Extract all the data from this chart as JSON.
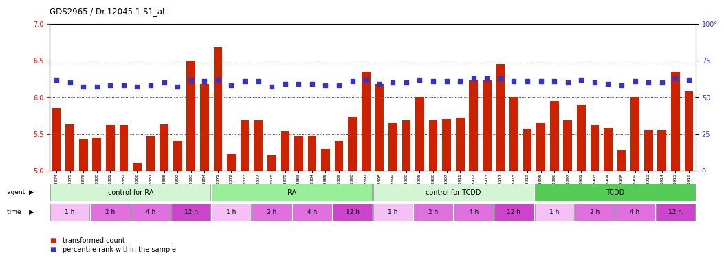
{
  "title": "GDS2965 / Dr.12045.1.S1_at",
  "samples": [
    "GSM228874",
    "GSM228875",
    "GSM228876",
    "GSM228880",
    "GSM228881",
    "GSM228882",
    "GSM228886",
    "GSM228887",
    "GSM228888",
    "GSM228892",
    "GSM228893",
    "GSM228894",
    "GSM228871",
    "GSM228872",
    "GSM228873",
    "GSM228877",
    "GSM228878",
    "GSM228879",
    "GSM228883",
    "GSM228884",
    "GSM228885",
    "GSM228889",
    "GSM228890",
    "GSM228891",
    "GSM228898",
    "GSM228899",
    "GSM228900",
    "GSM228905",
    "GSM228906",
    "GSM228907",
    "GSM228911",
    "GSM228912",
    "GSM228913",
    "GSM228917",
    "GSM228918",
    "GSM228919",
    "GSM228895",
    "GSM228896",
    "GSM228897",
    "GSM228901",
    "GSM228903",
    "GSM228904",
    "GSM228908",
    "GSM228909",
    "GSM228910",
    "GSM228914",
    "GSM228915",
    "GSM228916"
  ],
  "red_values": [
    5.85,
    5.63,
    5.43,
    5.45,
    5.62,
    5.62,
    5.1,
    5.47,
    5.63,
    5.4,
    6.5,
    6.18,
    6.68,
    5.22,
    5.68,
    5.68,
    5.2,
    5.53,
    5.47,
    5.48,
    5.3,
    5.4,
    5.73,
    6.35,
    6.18,
    5.65,
    5.68,
    6.0,
    5.68,
    5.7,
    5.72,
    6.23,
    6.23,
    6.45,
    6.0,
    5.57,
    5.65,
    5.95,
    5.68,
    5.9,
    5.62,
    5.58,
    5.28,
    6.0,
    5.55,
    5.55,
    6.35,
    6.08
  ],
  "blue_values": [
    62,
    60,
    57,
    57,
    58,
    58,
    57,
    58,
    60,
    57,
    62,
    61,
    62,
    58,
    61,
    61,
    57,
    59,
    59,
    59,
    58,
    58,
    61,
    62,
    59,
    60,
    60,
    62,
    61,
    61,
    61,
    63,
    63,
    63,
    61,
    61,
    61,
    61,
    60,
    62,
    60,
    59,
    58,
    61,
    60,
    60,
    63,
    62
  ],
  "ylim_left": [
    5.0,
    7.0
  ],
  "ylim_right": [
    0,
    100
  ],
  "yticks_left": [
    5.0,
    5.5,
    6.0,
    6.5,
    7.0
  ],
  "yticks_right": [
    0,
    25,
    50,
    75,
    100
  ],
  "bar_color": "#cc2200",
  "dot_color": "#3333cc",
  "agent_groups": [
    {
      "label": "control for RA",
      "start": 0,
      "end": 12,
      "color": "#d4f5d4"
    },
    {
      "label": "RA",
      "start": 12,
      "end": 24,
      "color": "#99ee99"
    },
    {
      "label": "control for TCDD",
      "start": 24,
      "end": 36,
      "color": "#d4f5d4"
    },
    {
      "label": "TCDD",
      "start": 36,
      "end": 48,
      "color": "#55cc55"
    }
  ],
  "time_groups": [
    {
      "label": "1 h",
      "color": "#f5c0f5"
    },
    {
      "label": "2 h",
      "color": "#e070e0"
    },
    {
      "label": "4 h",
      "color": "#e070e0"
    },
    {
      "label": "12 h",
      "color": "#cc44cc"
    },
    {
      "label": "1 h",
      "color": "#f5c0f5"
    },
    {
      "label": "2 h",
      "color": "#e070e0"
    },
    {
      "label": "4 h",
      "color": "#e070e0"
    },
    {
      "label": "12 h",
      "color": "#cc44cc"
    },
    {
      "label": "1 h",
      "color": "#f5c0f5"
    },
    {
      "label": "2 h",
      "color": "#e070e0"
    },
    {
      "label": "4 h",
      "color": "#e070e0"
    },
    {
      "label": "12 h",
      "color": "#cc44cc"
    },
    {
      "label": "1 h",
      "color": "#f5c0f5"
    },
    {
      "label": "2 h",
      "color": "#e070e0"
    },
    {
      "label": "4 h",
      "color": "#e070e0"
    },
    {
      "label": "12 h",
      "color": "#cc44cc"
    }
  ],
  "grid_lines": [
    5.5,
    6.0,
    6.5
  ],
  "legend_items": [
    {
      "label": "transformed count",
      "color": "#cc2200"
    },
    {
      "label": "percentile rank within the sample",
      "color": "#3333cc"
    }
  ],
  "ymin": 5.0
}
